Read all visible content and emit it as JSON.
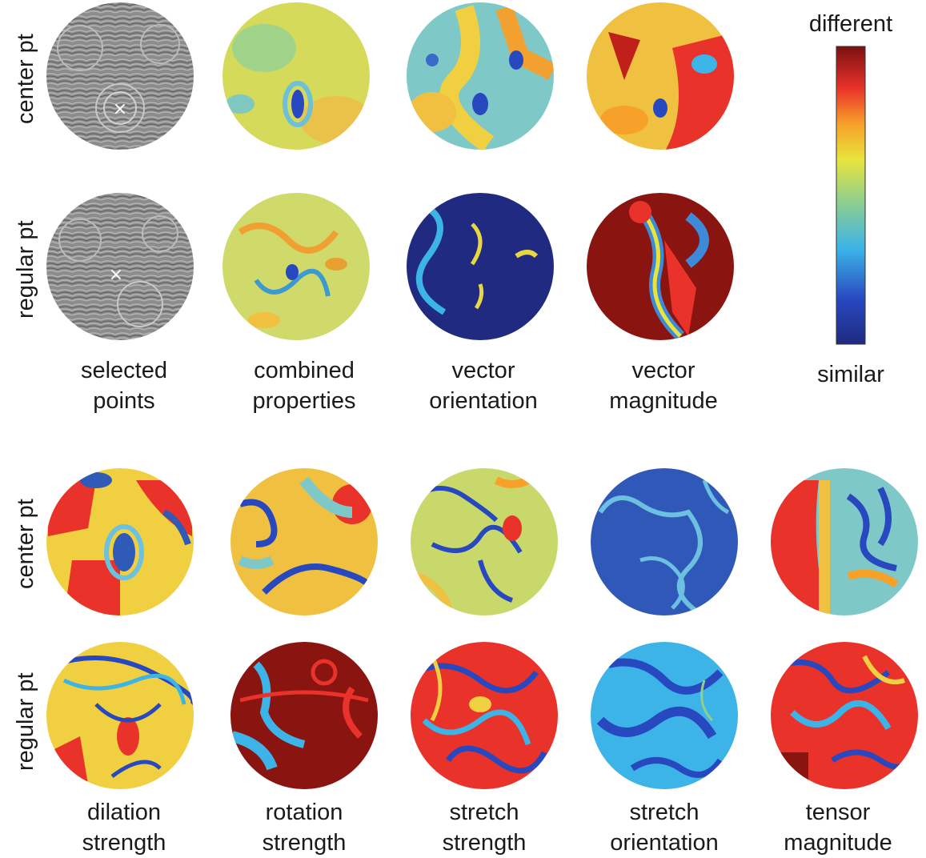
{
  "colorbar": {
    "top_label": "different",
    "bottom_label": "similar"
  },
  "row_labels": {
    "center": "center pt",
    "regular": "regular pt"
  },
  "top_panel": {
    "columns": [
      {
        "line1": "selected",
        "line2": "points"
      },
      {
        "line1": "combined",
        "line2": "properties"
      },
      {
        "line1": "vector",
        "line2": "orientation"
      },
      {
        "line1": "vector",
        "line2": "magnitude"
      }
    ]
  },
  "bottom_panel": {
    "columns": [
      {
        "line1": "dilation",
        "line2": "strength"
      },
      {
        "line1": "rotation",
        "line2": "strength"
      },
      {
        "line1": "stretch",
        "line2": "strength"
      },
      {
        "line1": "stretch",
        "line2": "orientation"
      },
      {
        "line1": "tensor",
        "line2": "magnitude"
      }
    ]
  },
  "marker_symbol": "×"
}
